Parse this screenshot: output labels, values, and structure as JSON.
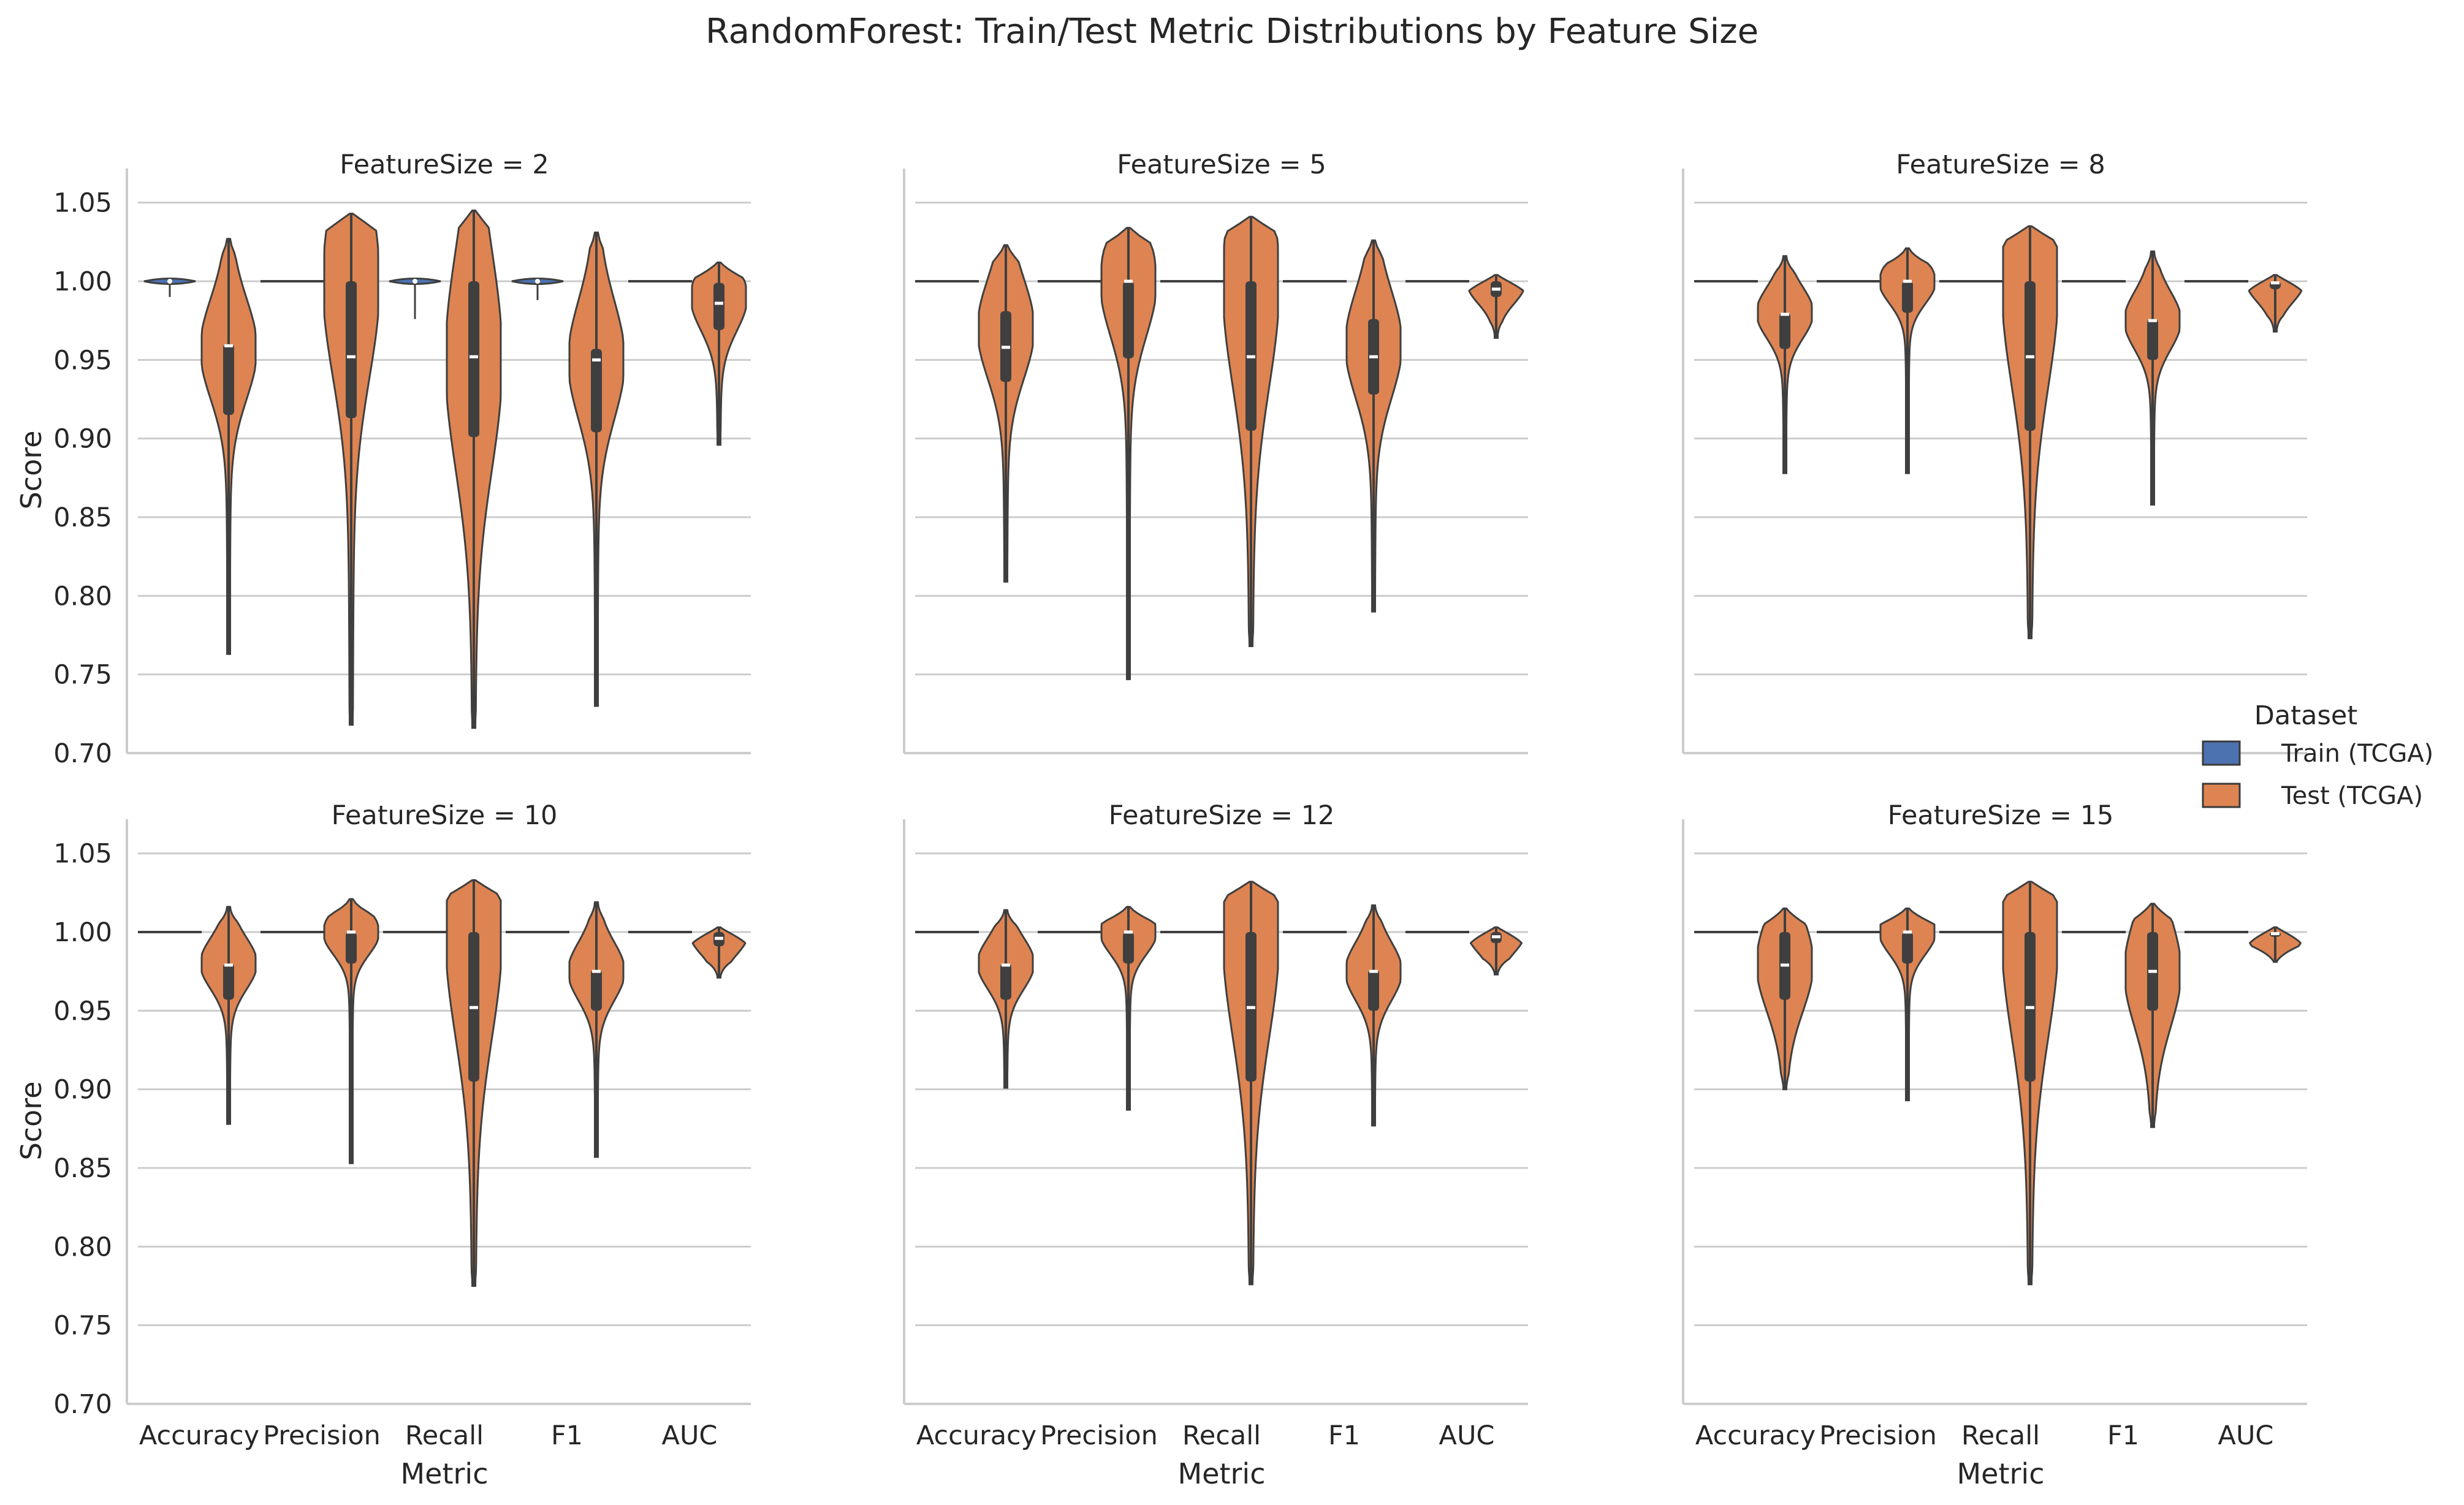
{
  "title": "RandomForest: Train/Test Metric Distributions by Feature Size",
  "legend": {
    "title": "Dataset",
    "entries": [
      {
        "label": "Train (TCGA)",
        "color": "#4c72b0"
      },
      {
        "label": "Test (TCGA)",
        "color": "#dd8452"
      }
    ]
  },
  "axes": {
    "xlabel": "Metric",
    "ylabel": "Score",
    "ylim": [
      0.7,
      1.06
    ],
    "yticks": [
      "0.70",
      "0.75",
      "0.80",
      "0.85",
      "0.90",
      "0.95",
      "1.00",
      "1.05"
    ]
  },
  "chart_data": {
    "type": "violin",
    "categories": [
      "Accuracy",
      "Precision",
      "Recall",
      "F1",
      "AUC"
    ],
    "series_names": [
      "Train (TCGA)",
      "Test (TCGA)"
    ],
    "panels": [
      {
        "title": "FeatureSize = 2",
        "train": [
          {
            "min": 0.99,
            "q1": 1.0,
            "median": 1.0,
            "q3": 1.0,
            "max": 1.0
          },
          {
            "min": 1.0,
            "q1": 1.0,
            "median": 1.0,
            "q3": 1.0,
            "max": 1.0
          },
          {
            "min": 0.976,
            "q1": 1.0,
            "median": 1.0,
            "q3": 1.0,
            "max": 1.0
          },
          {
            "min": 0.988,
            "q1": 1.0,
            "median": 1.0,
            "q3": 1.0,
            "max": 1.0
          },
          {
            "min": 1.0,
            "q1": 1.0,
            "median": 1.0,
            "q3": 1.0,
            "max": 1.0
          }
        ],
        "test": [
          {
            "min": 0.763,
            "q1": 0.915,
            "median": 0.959,
            "q3": 0.96,
            "max": 1.027,
            "peak": 0.957
          },
          {
            "min": 0.718,
            "q1": 0.913,
            "median": 0.952,
            "q3": 1.0,
            "max": 1.043,
            "peak": 1.0
          },
          {
            "min": 0.716,
            "q1": 0.901,
            "median": 0.952,
            "q3": 1.0,
            "max": 1.045,
            "peak": 0.95
          },
          {
            "min": 0.73,
            "q1": 0.904,
            "median": 0.95,
            "q3": 0.957,
            "max": 1.031,
            "peak": 0.95
          },
          {
            "min": 0.896,
            "q1": 0.969,
            "median": 0.986,
            "q3": 0.999,
            "max": 1.012,
            "peak": 0.99
          }
        ]
      },
      {
        "title": "FeatureSize = 5",
        "train": [
          {
            "min": 1.0,
            "q1": 1.0,
            "median": 1.0,
            "q3": 1.0,
            "max": 1.0
          },
          {
            "min": 1.0,
            "q1": 1.0,
            "median": 1.0,
            "q3": 1.0,
            "max": 1.0
          },
          {
            "min": 1.0,
            "q1": 1.0,
            "median": 1.0,
            "q3": 1.0,
            "max": 1.0
          },
          {
            "min": 1.0,
            "q1": 1.0,
            "median": 1.0,
            "q3": 1.0,
            "max": 1.0
          },
          {
            "min": 1.0,
            "q1": 1.0,
            "median": 1.0,
            "q3": 1.0,
            "max": 1.0
          }
        ],
        "test": [
          {
            "min": 0.809,
            "q1": 0.936,
            "median": 0.958,
            "q3": 0.981,
            "max": 1.023,
            "peak": 0.97
          },
          {
            "min": 0.747,
            "q1": 0.951,
            "median": 1.0,
            "q3": 1.0,
            "max": 1.034,
            "peak": 1.0
          },
          {
            "min": 0.768,
            "q1": 0.905,
            "median": 0.952,
            "q3": 1.0,
            "max": 1.041,
            "peak": 1.0
          },
          {
            "min": 0.79,
            "q1": 0.928,
            "median": 0.952,
            "q3": 0.976,
            "max": 1.026,
            "peak": 0.96
          },
          {
            "min": 0.964,
            "q1": 0.99,
            "median": 0.995,
            "q3": 1.0,
            "max": 1.004,
            "peak": 0.998
          }
        ]
      },
      {
        "title": "FeatureSize = 8",
        "train": [
          {
            "min": 1.0,
            "q1": 1.0,
            "median": 1.0,
            "q3": 1.0,
            "max": 1.0
          },
          {
            "min": 1.0,
            "q1": 1.0,
            "median": 1.0,
            "q3": 1.0,
            "max": 1.0
          },
          {
            "min": 1.0,
            "q1": 1.0,
            "median": 1.0,
            "q3": 1.0,
            "max": 1.0
          },
          {
            "min": 1.0,
            "q1": 1.0,
            "median": 1.0,
            "q3": 1.0,
            "max": 1.0
          },
          {
            "min": 1.0,
            "q1": 1.0,
            "median": 1.0,
            "q3": 1.0,
            "max": 1.0
          }
        ],
        "test": [
          {
            "min": 0.878,
            "q1": 0.957,
            "median": 0.979,
            "q3": 0.98,
            "max": 1.016,
            "peak": 0.98
          },
          {
            "min": 0.878,
            "q1": 0.98,
            "median": 1.0,
            "q3": 1.0,
            "max": 1.021,
            "peak": 1.0
          },
          {
            "min": 0.773,
            "q1": 0.905,
            "median": 0.952,
            "q3": 1.0,
            "max": 1.035,
            "peak": 1.0
          },
          {
            "min": 0.858,
            "q1": 0.95,
            "median": 0.975,
            "q3": 0.976,
            "max": 1.019,
            "peak": 0.975
          },
          {
            "min": 0.968,
            "q1": 0.995,
            "median": 0.999,
            "q3": 1.0,
            "max": 1.004,
            "peak": 0.999
          }
        ]
      },
      {
        "title": "FeatureSize = 10",
        "train": [
          {
            "min": 1.0,
            "q1": 1.0,
            "median": 1.0,
            "q3": 1.0,
            "max": 1.0
          },
          {
            "min": 1.0,
            "q1": 1.0,
            "median": 1.0,
            "q3": 1.0,
            "max": 1.0
          },
          {
            "min": 1.0,
            "q1": 1.0,
            "median": 1.0,
            "q3": 1.0,
            "max": 1.0
          },
          {
            "min": 1.0,
            "q1": 1.0,
            "median": 1.0,
            "q3": 1.0,
            "max": 1.0
          },
          {
            "min": 1.0,
            "q1": 1.0,
            "median": 1.0,
            "q3": 1.0,
            "max": 1.0
          }
        ],
        "test": [
          {
            "min": 0.878,
            "q1": 0.957,
            "median": 0.979,
            "q3": 0.98,
            "max": 1.016,
            "peak": 0.98
          },
          {
            "min": 0.853,
            "q1": 0.98,
            "median": 1.0,
            "q3": 1.0,
            "max": 1.021,
            "peak": 1.0
          },
          {
            "min": 0.775,
            "q1": 0.905,
            "median": 0.952,
            "q3": 1.0,
            "max": 1.033,
            "peak": 1.0
          },
          {
            "min": 0.857,
            "q1": 0.95,
            "median": 0.975,
            "q3": 0.976,
            "max": 1.019,
            "peak": 0.975
          },
          {
            "min": 0.971,
            "q1": 0.991,
            "median": 0.996,
            "q3": 1.0,
            "max": 1.003,
            "peak": 0.998
          }
        ]
      },
      {
        "title": "FeatureSize = 12",
        "train": [
          {
            "min": 1.0,
            "q1": 1.0,
            "median": 1.0,
            "q3": 1.0,
            "max": 1.0
          },
          {
            "min": 1.0,
            "q1": 1.0,
            "median": 1.0,
            "q3": 1.0,
            "max": 1.0
          },
          {
            "min": 1.0,
            "q1": 1.0,
            "median": 1.0,
            "q3": 1.0,
            "max": 1.0
          },
          {
            "min": 1.0,
            "q1": 1.0,
            "median": 1.0,
            "q3": 1.0,
            "max": 1.0
          },
          {
            "min": 1.0,
            "q1": 1.0,
            "median": 1.0,
            "q3": 1.0,
            "max": 1.0
          }
        ],
        "test": [
          {
            "min": 0.901,
            "q1": 0.957,
            "median": 0.979,
            "q3": 0.98,
            "max": 1.014,
            "peak": 0.98
          },
          {
            "min": 0.887,
            "q1": 0.98,
            "median": 1.0,
            "q3": 1.0,
            "max": 1.016,
            "peak": 1.0
          },
          {
            "min": 0.776,
            "q1": 0.905,
            "median": 0.952,
            "q3": 1.0,
            "max": 1.032,
            "peak": 1.0
          },
          {
            "min": 0.877,
            "q1": 0.95,
            "median": 0.975,
            "q3": 0.976,
            "max": 1.017,
            "peak": 0.975
          },
          {
            "min": 0.973,
            "q1": 0.993,
            "median": 0.997,
            "q3": 1.0,
            "max": 1.003,
            "peak": 0.999
          }
        ]
      },
      {
        "title": "FeatureSize = 15",
        "train": [
          {
            "min": 1.0,
            "q1": 1.0,
            "median": 1.0,
            "q3": 1.0,
            "max": 1.0
          },
          {
            "min": 1.0,
            "q1": 1.0,
            "median": 1.0,
            "q3": 1.0,
            "max": 1.0
          },
          {
            "min": 1.0,
            "q1": 1.0,
            "median": 1.0,
            "q3": 1.0,
            "max": 1.0
          },
          {
            "min": 1.0,
            "q1": 1.0,
            "median": 1.0,
            "q3": 1.0,
            "max": 1.0
          },
          {
            "min": 1.0,
            "q1": 1.0,
            "median": 1.0,
            "q3": 1.0,
            "max": 1.0
          }
        ],
        "test": [
          {
            "min": 0.9,
            "q1": 0.957,
            "median": 0.979,
            "q3": 1.0,
            "max": 1.015,
            "peak": 0.98
          },
          {
            "min": 0.893,
            "q1": 0.98,
            "median": 1.0,
            "q3": 1.0,
            "max": 1.015,
            "peak": 1.0
          },
          {
            "min": 0.776,
            "q1": 0.905,
            "median": 0.952,
            "q3": 1.0,
            "max": 1.032,
            "peak": 1.0
          },
          {
            "min": 0.876,
            "q1": 0.95,
            "median": 0.975,
            "q3": 1.0,
            "max": 1.018,
            "peak": 0.975
          },
          {
            "min": 0.981,
            "q1": 0.997,
            "median": 0.999,
            "q3": 1.0,
            "max": 1.003,
            "peak": 0.999
          }
        ]
      }
    ]
  }
}
